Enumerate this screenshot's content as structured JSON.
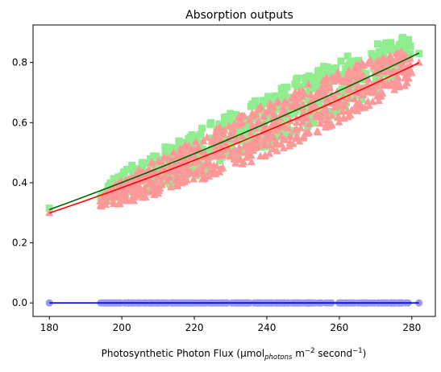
{
  "chart_data": {
    "type": "scatter",
    "title": "Absorption outputs",
    "xlabel": {
      "prefix": "Photosynthetic Photon Flux (µmol",
      "subscript": "photons",
      "middle": " m",
      "sup1": "−2",
      "after": " second",
      "sup2": "−1",
      "suffix": ")"
    },
    "ylabel": "",
    "xlim": [
      175.5,
      286.5
    ],
    "ylim": [
      -0.045,
      0.925
    ],
    "xticks": [
      180,
      200,
      220,
      240,
      260,
      280
    ],
    "yticks": [
      0.0,
      0.2,
      0.4,
      0.6,
      0.8
    ],
    "xtick_labels": [
      "180",
      "200",
      "220",
      "240",
      "260",
      "280"
    ],
    "ytick_labels": [
      "0.0",
      "0.2",
      "0.4",
      "0.6",
      "0.8"
    ],
    "grid": false,
    "x_domain": [
      180,
      282
    ],
    "series": [
      {
        "marker": "square",
        "color": "#90ee90",
        "band": [
          {
            "x": 180,
            "lo": 0.31,
            "hi": 0.32
          },
          {
            "x": 194,
            "lo": 0.33,
            "hi": 0.37
          },
          {
            "x": 200,
            "lo": 0.35,
            "hi": 0.44
          },
          {
            "x": 210,
            "lo": 0.38,
            "hi": 0.51
          },
          {
            "x": 220,
            "lo": 0.42,
            "hi": 0.57
          },
          {
            "x": 230,
            "lo": 0.47,
            "hi": 0.64
          },
          {
            "x": 240,
            "lo": 0.52,
            "hi": 0.69
          },
          {
            "x": 250,
            "lo": 0.58,
            "hi": 0.76
          },
          {
            "x": 260,
            "lo": 0.63,
            "hi": 0.81
          },
          {
            "x": 270,
            "lo": 0.7,
            "hi": 0.86
          },
          {
            "x": 278,
            "lo": 0.77,
            "hi": 0.89
          },
          {
            "x": 282,
            "lo": 0.81,
            "hi": 0.85
          }
        ],
        "count": 600,
        "fit": {
          "color": "#006400",
          "x": [
            180,
            282
          ],
          "coef": [
            0.3105,
            0.004364,
            7.3e-06
          ]
        }
      },
      {
        "marker": "triangle",
        "color": "#ff9999",
        "band": [
          {
            "x": 180,
            "lo": 0.29,
            "hi": 0.31
          },
          {
            "x": 194,
            "lo": 0.32,
            "hi": 0.36
          },
          {
            "x": 200,
            "lo": 0.33,
            "hi": 0.41
          },
          {
            "x": 210,
            "lo": 0.36,
            "hi": 0.48
          },
          {
            "x": 220,
            "lo": 0.4,
            "hi": 0.54
          },
          {
            "x": 230,
            "lo": 0.44,
            "hi": 0.61
          },
          {
            "x": 240,
            "lo": 0.49,
            "hi": 0.66
          },
          {
            "x": 250,
            "lo": 0.54,
            "hi": 0.72
          },
          {
            "x": 260,
            "lo": 0.6,
            "hi": 0.77
          },
          {
            "x": 270,
            "lo": 0.66,
            "hi": 0.82
          },
          {
            "x": 278,
            "lo": 0.72,
            "hi": 0.84
          },
          {
            "x": 282,
            "lo": 0.79,
            "hi": 0.81
          }
        ],
        "count": 700,
        "fit": {
          "color": "#ff0000",
          "x": [
            180,
            282
          ],
          "coef": [
            0.2991,
            0.004056,
            8.3e-06
          ]
        }
      },
      {
        "marker": "circle",
        "color": "#9999ee",
        "band": [
          {
            "x": 180,
            "lo": 0.0,
            "hi": 0.0
          },
          {
            "x": 282,
            "lo": 0.0,
            "hi": 0.0
          }
        ],
        "xs_dense_range": [
          194,
          279
        ],
        "isolated_x": [
          180,
          282
        ],
        "count": 300,
        "fit": {
          "color": "#0000ff",
          "x": [
            180,
            282
          ],
          "coef": [
            0.0,
            0.0,
            0.0
          ]
        }
      }
    ]
  }
}
